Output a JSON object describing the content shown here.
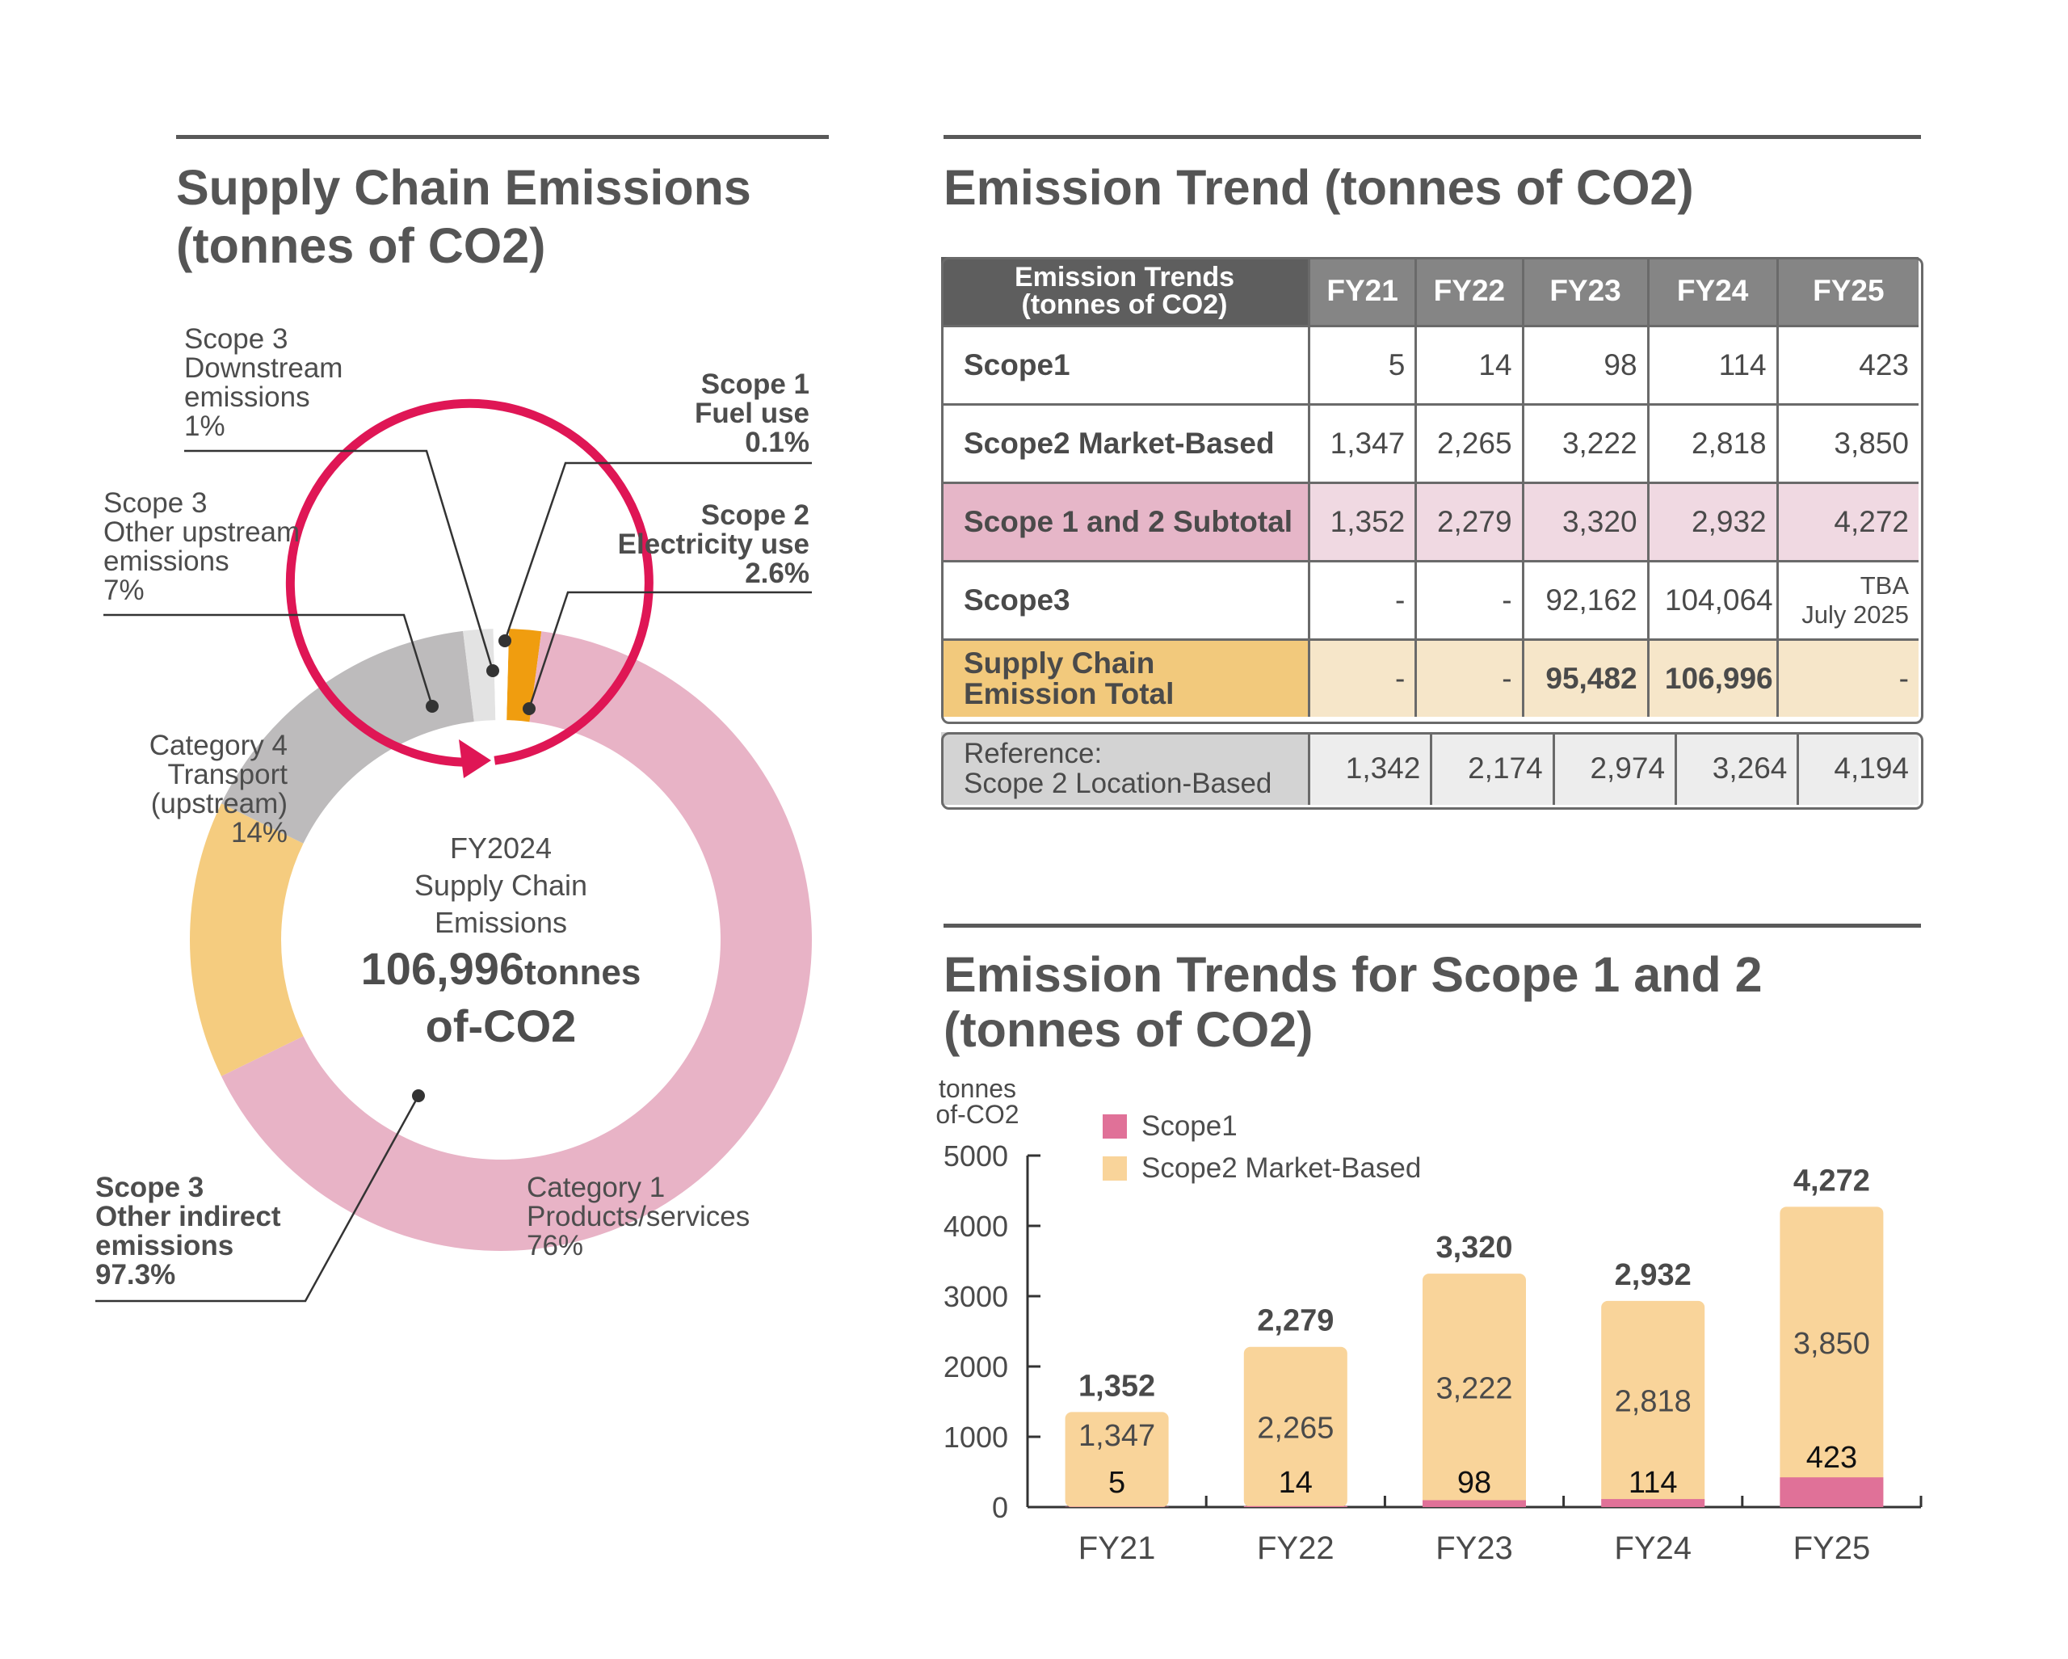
{
  "left": {
    "title_line1": "Supply Chain Emissions",
    "title_line2": "(tonnes of CO2)",
    "center": {
      "line1": "FY2024",
      "line2": "Supply Chain",
      "line3": "Emissions",
      "value": "106,996",
      "unit": "tonnes",
      "line5": "of-CO2"
    },
    "labels": {
      "scope3_down": [
        "Scope 3",
        "Downstream",
        "emissions",
        "1%"
      ],
      "scope1": [
        "Scope 1",
        "Fuel use",
        "0.1%"
      ],
      "scope3_other_up": [
        "Scope 3",
        "Other upstream",
        "emissions",
        "7%"
      ],
      "scope2": [
        "Scope 2",
        "Electricity use",
        "2.6%"
      ],
      "cat4": [
        "Category 4",
        "Transport",
        "(upstream)",
        "14%"
      ],
      "scope3_indirect": [
        "Scope 3",
        "Other indirect",
        "emissions",
        "97.3%"
      ],
      "cat1": [
        "Category 1",
        "Products/services",
        "76%"
      ]
    },
    "colors": {
      "pink": "#e8b3c6",
      "yellow": "#f5cc7f",
      "gray": "#bdbbbc",
      "orange": "#f09d0f",
      "light": "#e3e3e3",
      "arrow": "#df1655"
    }
  },
  "chart_data": [
    {
      "type": "pie",
      "title": "Supply Chain Emissions (tonnes of CO2)",
      "categories": [
        "Scope 1 Fuel use",
        "Scope 2 Electricity use",
        "Category 1 Products/services",
        "Category 4 Transport (upstream)",
        "Scope 3 Other upstream emissions",
        "Scope 3 Downstream emissions"
      ],
      "values": [
        0.1,
        2.6,
        76,
        14,
        7,
        1
      ],
      "total_label": "106,996tonnes of-CO2"
    },
    {
      "type": "bar",
      "title": "Emission Trends for Scope 1 and 2 (tonnes of CO2)",
      "categories": [
        "FY21",
        "FY22",
        "FY23",
        "FY24",
        "FY25"
      ],
      "series": [
        {
          "name": "Scope1",
          "values": [
            5,
            14,
            98,
            114,
            423
          ]
        },
        {
          "name": "Scope2 Market-Based",
          "values": [
            1347,
            2265,
            3222,
            2818,
            3850
          ]
        }
      ],
      "totals": [
        1352,
        2279,
        3320,
        2932,
        4272
      ],
      "totals_labels": [
        "1,352",
        "2,279",
        "3,320",
        "2,932",
        "4,272"
      ],
      "scope1_labels": [
        "5",
        "14",
        "98",
        "114",
        "423"
      ],
      "scope2_labels": [
        "1,347",
        "2,265",
        "3,222",
        "2,818",
        "3,850"
      ],
      "ylabel": [
        "tonnes",
        "of-CO2"
      ],
      "yticks": [
        "0",
        "1000",
        "2000",
        "3000",
        "4000",
        "5000"
      ],
      "ylim": [
        0,
        5000
      ],
      "stacked": true,
      "legend_position": "top-left",
      "colors": {
        "scope1": "#e07198",
        "scope2": "#f9d49a"
      }
    }
  ],
  "table": {
    "title": "Emission Trend (tonnes of CO2)",
    "corner": [
      "Emission Trends",
      "(tonnes of CO2)"
    ],
    "columns": [
      "FY21",
      "FY22",
      "FY23",
      "FY24",
      "FY25"
    ],
    "rows": [
      {
        "label": "Scope1",
        "values": [
          "5",
          "14",
          "98",
          "114",
          "423"
        ]
      },
      {
        "label": "Scope2 Market-Based",
        "values": [
          "1,347",
          "2,265",
          "3,222",
          "2,818",
          "3,850"
        ]
      },
      {
        "label": "Scope 1 and 2 Subtotal",
        "values": [
          "1,352",
          "2,279",
          "3,320",
          "2,932",
          "4,272"
        ]
      },
      {
        "label": "Scope3",
        "values": [
          "-",
          "-",
          "92,162",
          "104,064"
        ],
        "tba": [
          "TBA",
          "July 2025"
        ]
      },
      {
        "label": [
          "Supply Chain",
          "Emission Total"
        ],
        "values": [
          "-",
          "-",
          "95,482",
          "106,996",
          "-"
        ]
      }
    ],
    "reference": {
      "label": [
        "Reference:",
        "Scope 2 Location-Based"
      ],
      "values": [
        "1,342",
        "2,174",
        "2,974",
        "3,264",
        "4,194"
      ]
    }
  },
  "bar_title": [
    "Emission Trends for Scope 1 and 2",
    "(tonnes of CO2)"
  ]
}
